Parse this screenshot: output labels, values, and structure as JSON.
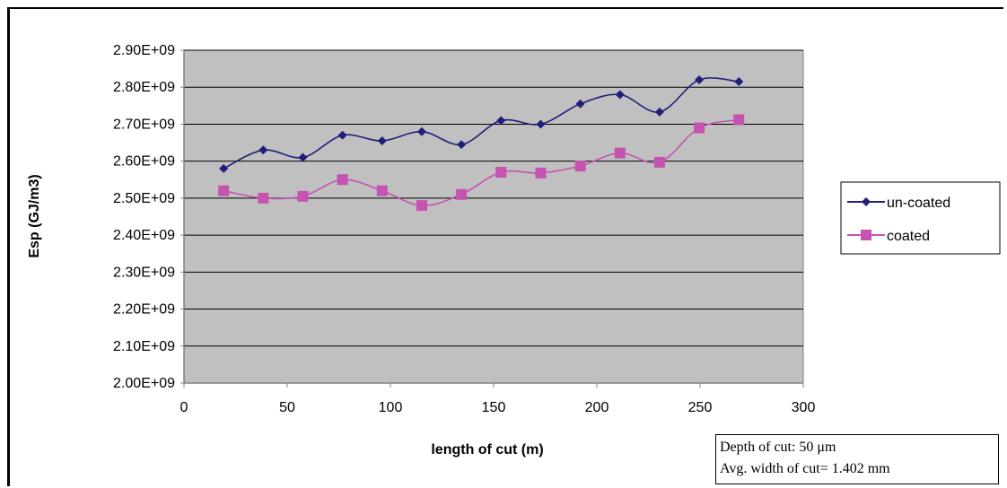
{
  "chart_data": {
    "type": "line",
    "title": "",
    "xlabel": "length of cut (m)",
    "ylabel": "Esp (GJ/m3)",
    "xlim": [
      0,
      300
    ],
    "ylim": [
      2000000000,
      2900000000
    ],
    "x_ticks": [
      0,
      50,
      100,
      150,
      200,
      250,
      300
    ],
    "x_tick_labels": [
      "0",
      "50",
      "100",
      "150",
      "200",
      "250",
      "300"
    ],
    "y_ticks": [
      2000000000,
      2100000000,
      2200000000,
      2300000000,
      2400000000,
      2500000000,
      2600000000,
      2700000000,
      2800000000,
      2900000000
    ],
    "y_tick_labels": [
      "2.00E+09",
      "2.10E+09",
      "2.20E+09",
      "2.30E+09",
      "2.40E+09",
      "2.50E+09",
      "2.60E+09",
      "2.70E+09",
      "2.80E+09",
      "2.90E+09"
    ],
    "grid": true,
    "legend_position": "right",
    "plot_background": "#c0c0c0",
    "series": [
      {
        "name": "un-coated",
        "color": "#1f1f7a",
        "marker": "diamond",
        "x": [
          19.2,
          38.4,
          57.6,
          76.8,
          96,
          115.2,
          134.4,
          153.6,
          172.8,
          192,
          211.2,
          230.4,
          249.6,
          268.8
        ],
        "y": [
          2580000000,
          2630000000,
          2610000000,
          2670000000,
          2655000000,
          2680000000,
          2645000000,
          2710000000,
          2700000000,
          2755000000,
          2780000000,
          2733000000,
          2820000000,
          2815000000
        ]
      },
      {
        "name": "coated",
        "color": "#c653b0",
        "marker": "square",
        "x": [
          19.2,
          38.4,
          57.6,
          76.8,
          96,
          115.2,
          134.4,
          153.6,
          172.8,
          192,
          211.2,
          230.4,
          249.6,
          268.8
        ],
        "y": [
          2520000000,
          2500000000,
          2505000000,
          2550000000,
          2520000000,
          2480000000,
          2510000000,
          2570000000,
          2568000000,
          2587000000,
          2622000000,
          2597000000,
          2690000000,
          2712000000
        ]
      }
    ],
    "annotation": {
      "line1": "Depth of cut: 50 μm",
      "line2": "Avg. width of cut= 1.402 mm"
    }
  }
}
